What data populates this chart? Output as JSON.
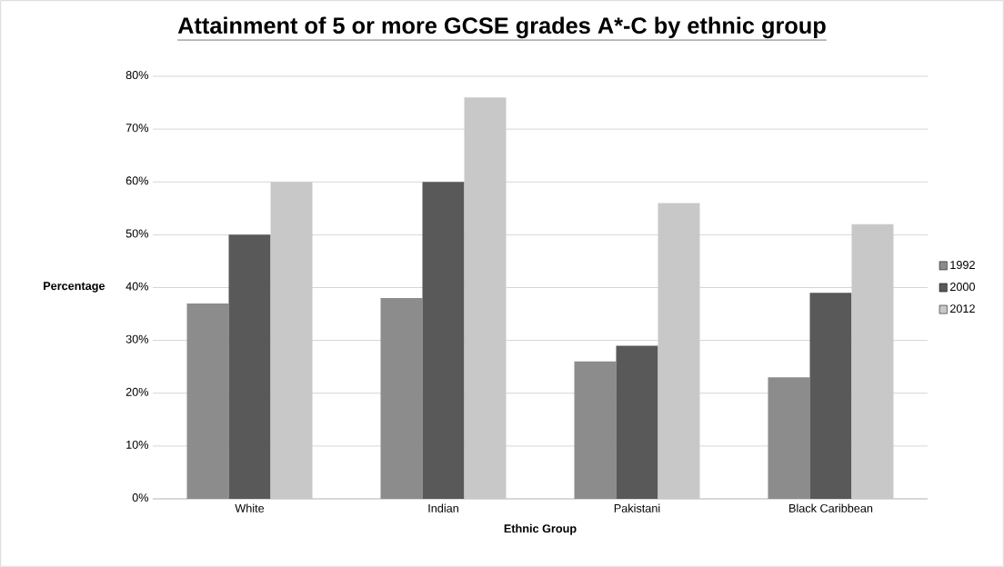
{
  "chart_data": {
    "type": "bar",
    "title": "Attainment of 5 or more GCSE grades A*-C by ethnic group",
    "xlabel": "Ethnic Group",
    "ylabel": "Percentage",
    "categories": [
      "White",
      "Indian",
      "Pakistani",
      "Black Caribbean"
    ],
    "series": [
      {
        "name": "1992",
        "color": "#8c8c8c",
        "values": [
          37,
          38,
          26,
          23
        ]
      },
      {
        "name": "2000",
        "color": "#595959",
        "values": [
          50,
          60,
          29,
          39
        ]
      },
      {
        "name": "2012",
        "color": "#c8c8c8",
        "values": [
          60,
          76,
          56,
          52
        ]
      }
    ],
    "ylim": [
      0,
      80
    ],
    "yticks": [
      {
        "value": 0,
        "label": "0%"
      },
      {
        "value": 10,
        "label": "10%"
      },
      {
        "value": 20,
        "label": "20%"
      },
      {
        "value": 30,
        "label": "30%"
      },
      {
        "value": 40,
        "label": "40%"
      },
      {
        "value": 50,
        "label": "50%"
      },
      {
        "value": 60,
        "label": "60%"
      },
      {
        "value": 70,
        "label": "70%"
      },
      {
        "value": 80,
        "label": "80%"
      }
    ],
    "grid": "y",
    "legend": "right"
  }
}
